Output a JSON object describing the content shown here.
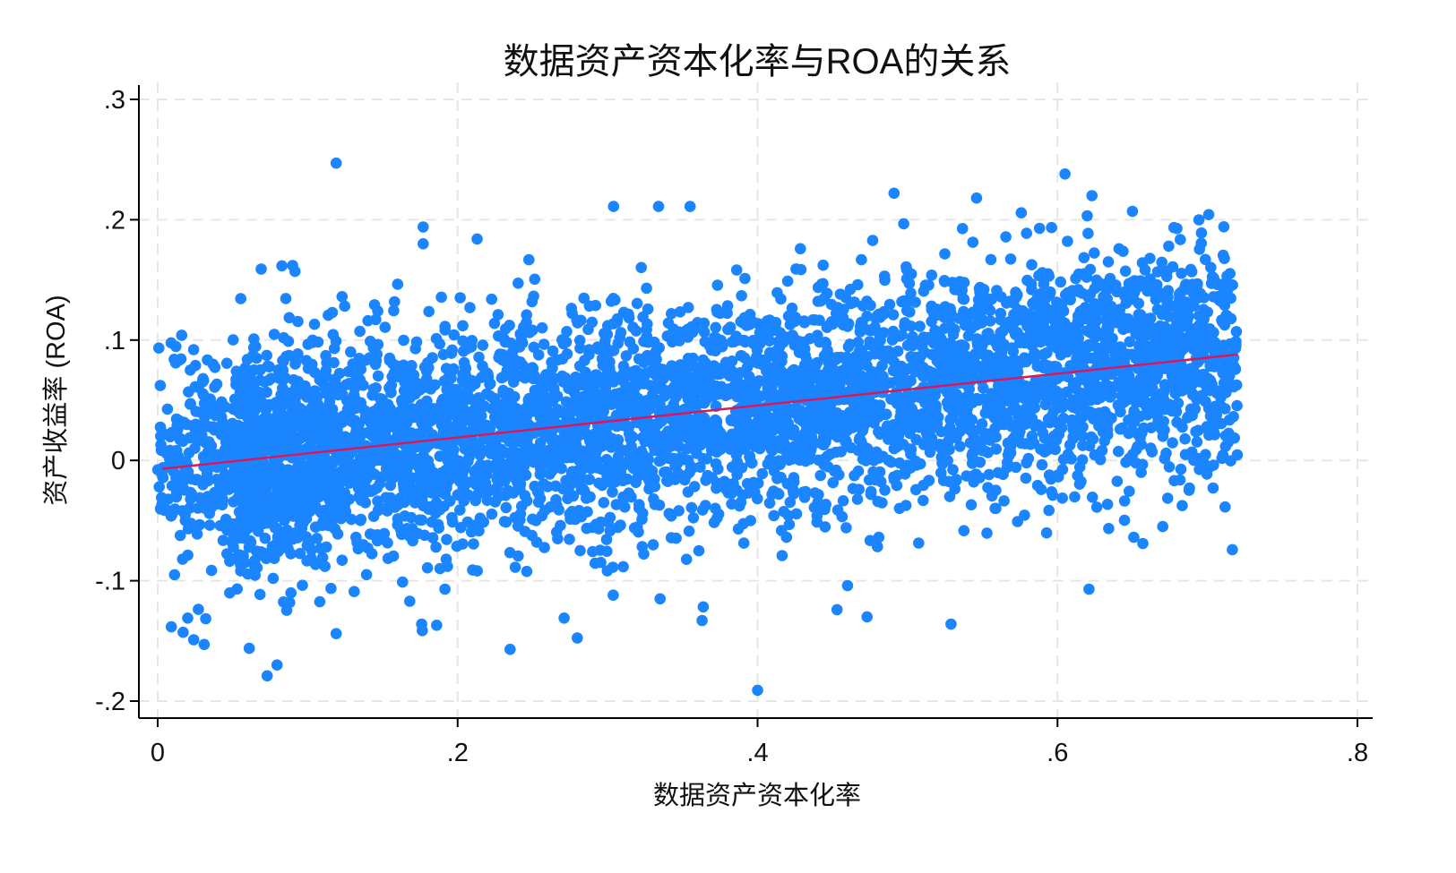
{
  "chart_data": {
    "type": "scatter",
    "title": "数据资产资本化率与ROA的关系",
    "xlabel": "数据资产资本化率",
    "ylabel": "资产收益率 (ROA)",
    "xlim": [
      0,
      0.8
    ],
    "ylim": [
      -0.2,
      0.3
    ],
    "xticks": [
      0,
      0.2,
      0.4,
      0.6,
      0.8
    ],
    "xtick_labels": [
      "0",
      ".2",
      ".4",
      ".6",
      ".8"
    ],
    "yticks": [
      -0.2,
      -0.1,
      0,
      0.1,
      0.2,
      0.3
    ],
    "ytick_labels": [
      "-.2",
      "-.1",
      "0",
      ".1",
      ".2",
      ".3"
    ],
    "grid": true,
    "legend": "none",
    "colors": {
      "points": "#1a85ff",
      "fit_line": "#d6195c",
      "grid": "#e6e6e6",
      "axis": "#000000"
    },
    "series": [
      {
        "name": "observations",
        "kind": "scatter",
        "notable_points": [
          [
            0.119,
            0.247
          ],
          [
            0.4,
            -0.191
          ],
          [
            0.073,
            -0.179
          ],
          [
            0.235,
            -0.157
          ],
          [
            0.031,
            -0.153
          ],
          [
            0.529,
            -0.136
          ],
          [
            0.621,
            -0.107
          ],
          [
            0.605,
            0.238
          ],
          [
            0.491,
            0.222
          ],
          [
            0.623,
            0.22
          ],
          [
            0.546,
            0.218
          ],
          [
            0.304,
            0.211
          ],
          [
            0.334,
            0.211
          ],
          [
            0.355,
            0.211
          ],
          [
            0.177,
            0.194
          ],
          [
            0.177,
            0.18
          ],
          [
            0.213,
            0.184
          ],
          [
            0.65,
            0.207
          ],
          [
            0.696,
            0.189
          ],
          [
            0.718,
            0.096
          ],
          [
            0.09,
            0.162
          ],
          [
            0.069,
            0.159
          ],
          [
            0.016,
            0.104
          ],
          [
            0.012,
            0.081
          ],
          [
            0.001,
            -0.022
          ],
          [
            0.704,
            -0.004
          ],
          [
            0.688,
            -0.023
          ],
          [
            0.02,
            -0.131
          ],
          [
            0.024,
            -0.149
          ],
          [
            0.119,
            -0.144
          ],
          [
            0.176,
            -0.136
          ],
          [
            0.186,
            -0.137
          ],
          [
            0.271,
            -0.131
          ],
          [
            0.335,
            -0.115
          ],
          [
            0.363,
            -0.133
          ],
          [
            0.473,
            -0.13
          ],
          [
            0.46,
            -0.104
          ],
          [
            0.453,
            -0.124
          ],
          [
            0.71,
            0.115
          ],
          [
            0.705,
            0.098
          ],
          [
            0.709,
            0.045
          ]
        ],
        "cloud": {
          "n": 5200,
          "x_range": [
            0.0,
            0.72
          ],
          "intercept": -0.007,
          "slope": 0.132,
          "residual_sd": 0.046,
          "y_clip": [
            -0.17,
            0.21
          ]
        }
      },
      {
        "name": "linear fit",
        "kind": "line",
        "points": [
          [
            0.003,
            -0.007
          ],
          [
            0.72,
            0.088
          ]
        ]
      }
    ]
  }
}
